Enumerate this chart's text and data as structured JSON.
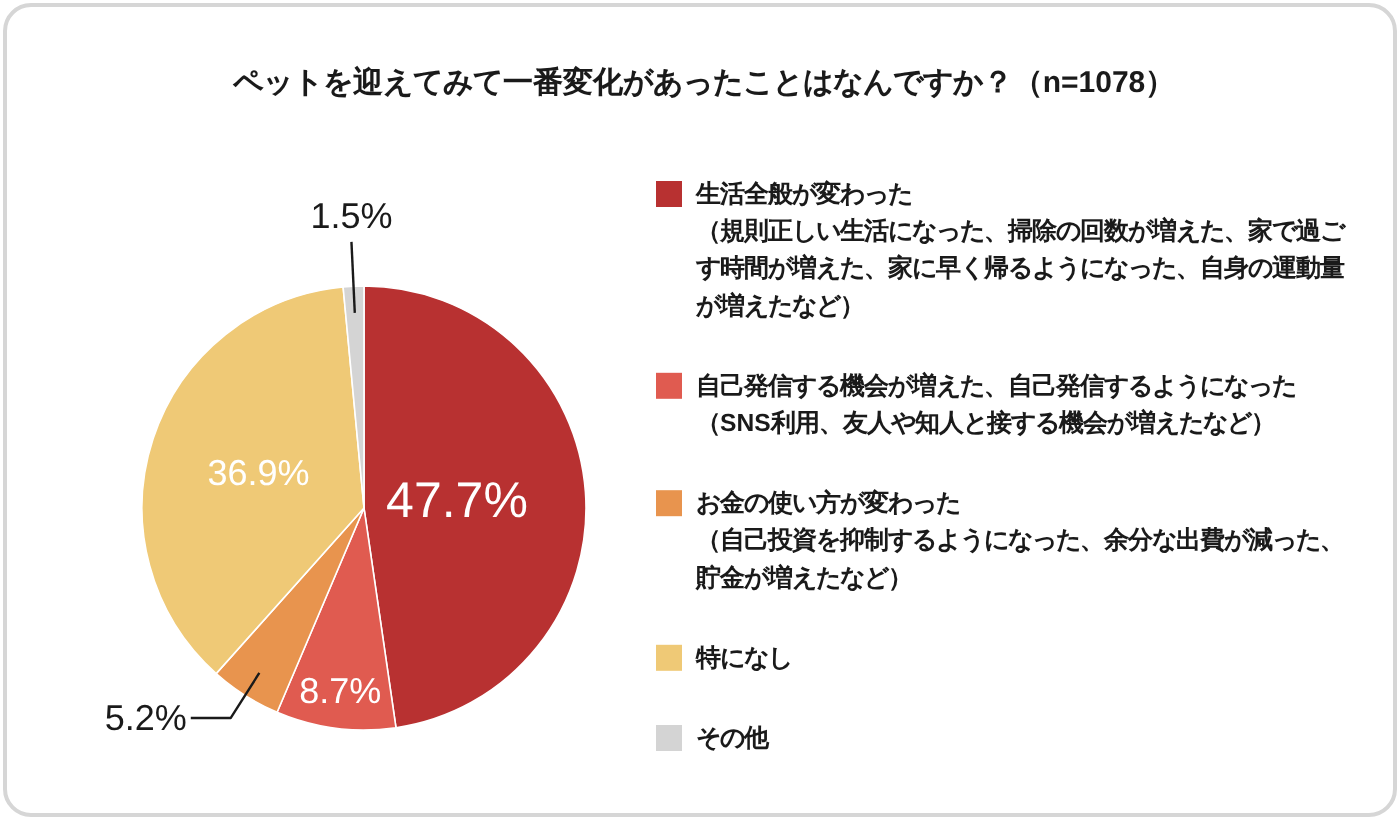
{
  "chart_data": {
    "type": "pie",
    "title": "ペットを迎えてみて一番変化があったことはなんですか？（n=1078）",
    "categories": [
      "生活全般が変わった（規則正しい生活になった、掃除の回数が増えた、家で過ごす時間が増えた、家に早く帰るようになった、自身の運動量が増えたなど）",
      "自己発信する機会が増えた、自己発信するようになった（SNS利用、友人や知人と接する機会が増えたなど）",
      "お金の使い方が変わった（自己投資を抑制するようになった、余分な出費が減った、貯金が増えたなど）",
      "特になし",
      "その他"
    ],
    "values": [
      47.7,
      8.7,
      5.2,
      36.9,
      1.5
    ],
    "colors": [
      "#b83131",
      "#e05b50",
      "#e8944e",
      "#efc976",
      "#d4d4d4"
    ],
    "value_labels": [
      "47.7%",
      "8.7%",
      "5.2%",
      "36.9%",
      "1.5%"
    ],
    "legend": "right"
  }
}
